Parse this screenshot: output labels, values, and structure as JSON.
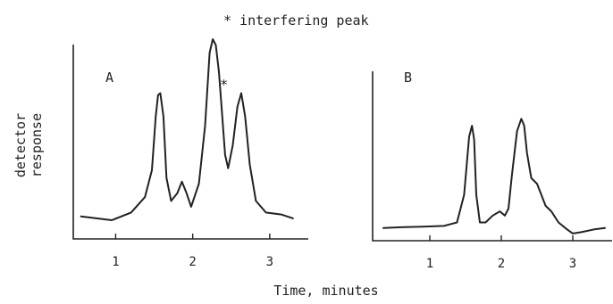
{
  "annotation": "* interfering peak",
  "ylabel_line1": "detector",
  "ylabel_line2": "response",
  "xlabel": "Time, minutes",
  "colors": {
    "ink": "#222222",
    "background": "#ffffff"
  },
  "chart_data": [
    {
      "type": "line",
      "panel_label": "A",
      "marker_label": "*",
      "marker_x": 2.4,
      "xlim": [
        0.45,
        3.5
      ],
      "ylim": [
        0,
        1
      ],
      "xticks": [
        1,
        2,
        3
      ],
      "grid": false,
      "series": [
        {
          "x": [
            0.55,
            0.75,
            0.95,
            1.2,
            1.38,
            1.47,
            1.52,
            1.55,
            1.58,
            1.62,
            1.66,
            1.72,
            1.8,
            1.86,
            1.92,
            1.98,
            2.08,
            2.16,
            2.22,
            2.26,
            2.3,
            2.34,
            2.38,
            2.42,
            2.46,
            2.52,
            2.58,
            2.63,
            2.68,
            2.74,
            2.82,
            2.95,
            3.15,
            3.3
          ],
          "y": [
            0.08,
            0.07,
            0.06,
            0.1,
            0.18,
            0.32,
            0.6,
            0.71,
            0.72,
            0.6,
            0.28,
            0.16,
            0.2,
            0.26,
            0.2,
            0.13,
            0.25,
            0.55,
            0.93,
            1.0,
            0.97,
            0.83,
            0.62,
            0.4,
            0.33,
            0.45,
            0.65,
            0.72,
            0.6,
            0.35,
            0.16,
            0.1,
            0.09,
            0.07
          ]
        }
      ]
    },
    {
      "type": "line",
      "panel_label": "B",
      "xlim": [
        0.2,
        3.55
      ],
      "ylim": [
        0,
        1
      ],
      "xticks": [
        1,
        2,
        3
      ],
      "grid": false,
      "series": [
        {
          "x": [
            0.35,
            0.6,
            0.9,
            1.2,
            1.38,
            1.48,
            1.55,
            1.59,
            1.62,
            1.65,
            1.7,
            1.78,
            1.88,
            1.98,
            2.05,
            2.1,
            2.15,
            2.22,
            2.28,
            2.32,
            2.36,
            2.42,
            2.5,
            2.56,
            2.62,
            2.7,
            2.8,
            2.92,
            3.0,
            3.12,
            3.3,
            3.45
          ],
          "y": [
            0.06,
            0.065,
            0.07,
            0.075,
            0.1,
            0.3,
            0.72,
            0.8,
            0.7,
            0.3,
            0.1,
            0.1,
            0.15,
            0.18,
            0.15,
            0.2,
            0.45,
            0.76,
            0.85,
            0.8,
            0.6,
            0.42,
            0.38,
            0.3,
            0.22,
            0.18,
            0.1,
            0.05,
            0.02,
            0.03,
            0.05,
            0.06
          ]
        }
      ]
    }
  ]
}
